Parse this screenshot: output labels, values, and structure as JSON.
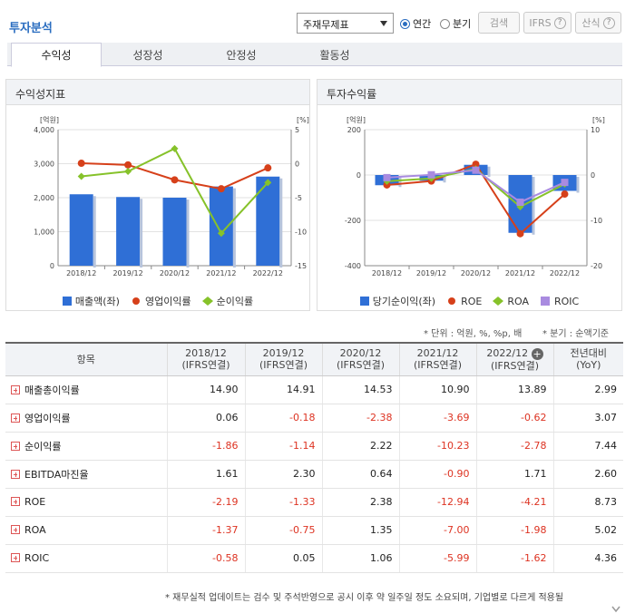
{
  "header": {
    "title": "투자분석",
    "select_value": "주재무제표",
    "radio_annual": "연간",
    "radio_quarter": "분기",
    "search_btn": "검색",
    "ifrs_btn": "IFRS",
    "formula_btn": "산식"
  },
  "tabs": [
    "수익성",
    "성장성",
    "안정성",
    "활동성"
  ],
  "left_panel": {
    "title": "수익성지표",
    "left_unit": "[억원]",
    "right_unit": "[%]",
    "legend": [
      "매출액(좌)",
      "영업이익률",
      "순이익률"
    ]
  },
  "right_panel": {
    "title": "투자수익률",
    "left_unit": "[억원]",
    "right_unit": "[%]",
    "legend": [
      "당기순이익(좌)",
      "ROE",
      "ROA",
      "ROIC"
    ]
  },
  "chart_data": [
    {
      "type": "bar",
      "title": "수익성지표",
      "categories": [
        "2018/12",
        "2019/12",
        "2020/12",
        "2021/12",
        "2022/12"
      ],
      "y_left_ticks": [
        "4,000",
        "3,000",
        "2,000",
        "1,000",
        "0"
      ],
      "y_right_ticks": [
        "5",
        "0",
        "-5",
        "-10",
        "-15"
      ],
      "ylim_left": [
        0,
        4000
      ],
      "ylim_right": [
        -15,
        5
      ],
      "series": [
        {
          "name": "매출액(좌)",
          "type": "bar",
          "axis": "left",
          "color": "#2f6fd6",
          "values": [
            2100,
            2020,
            2000,
            2330,
            2620
          ]
        },
        {
          "name": "영업이익률",
          "type": "line",
          "axis": "right",
          "color": "#d6401a",
          "values": [
            0.06,
            -0.18,
            -2.38,
            -3.69,
            -0.62
          ]
        },
        {
          "name": "순이익률",
          "type": "line",
          "axis": "right",
          "color": "#86c22a",
          "values": [
            -1.86,
            -1.14,
            2.22,
            -10.23,
            -2.78
          ]
        }
      ]
    },
    {
      "type": "bar",
      "title": "투자수익률",
      "categories": [
        "2018/12",
        "2019/12",
        "2020/12",
        "2021/12",
        "2022/12"
      ],
      "y_left_ticks": [
        "200",
        "0",
        "-200",
        "-400"
      ],
      "y_right_ticks": [
        "10",
        "0",
        "-10",
        "-20"
      ],
      "ylim_left": [
        -400,
        200
      ],
      "ylim_right": [
        -20,
        10
      ],
      "series": [
        {
          "name": "당기순이익(좌)",
          "type": "bar",
          "axis": "left",
          "color": "#2f6fd6",
          "values": [
            -45,
            -25,
            45,
            -255,
            -70
          ]
        },
        {
          "name": "ROE",
          "type": "line",
          "axis": "right",
          "color": "#d6401a",
          "values": [
            -2.19,
            -1.33,
            2.38,
            -12.94,
            -4.21
          ]
        },
        {
          "name": "ROA",
          "type": "line",
          "axis": "right",
          "color": "#86c22a",
          "values": [
            -1.37,
            -0.75,
            1.35,
            -7.0,
            -1.98
          ]
        },
        {
          "name": "ROIC",
          "type": "line",
          "axis": "right",
          "color": "#a98be0",
          "values": [
            -0.58,
            0.05,
            1.06,
            -5.99,
            -1.62
          ]
        }
      ]
    }
  ],
  "notes": {
    "unit": "* 단위 : 억원, %, %p, 배",
    "quarter": "* 분기 : 순액기준",
    "footer": "* 재무실적 업데이트는 검수 및 주석반영으로 공시 이후 약 일주일 정도 소요되며, 기업별로 다르게 적용될"
  },
  "table": {
    "head_label": "항목",
    "columns": [
      {
        "date": "2018/12",
        "sub": "(IFRS연결)"
      },
      {
        "date": "2019/12",
        "sub": "(IFRS연결)"
      },
      {
        "date": "2020/12",
        "sub": "(IFRS연결)"
      },
      {
        "date": "2021/12",
        "sub": "(IFRS연결)"
      },
      {
        "date": "2022/12",
        "sub": "(IFRS연결)"
      }
    ],
    "yoy_label": "전년대비",
    "yoy_sub": "(YoY)",
    "rows": [
      {
        "name": "매출총이익률",
        "values": [
          "14.90",
          "14.91",
          "14.53",
          "10.90",
          "13.89"
        ],
        "yoy": "2.99"
      },
      {
        "name": "영업이익률",
        "values": [
          "0.06",
          "-0.18",
          "-2.38",
          "-3.69",
          "-0.62"
        ],
        "yoy": "3.07"
      },
      {
        "name": "순이익률",
        "values": [
          "-1.86",
          "-1.14",
          "2.22",
          "-10.23",
          "-2.78"
        ],
        "yoy": "7.44"
      },
      {
        "name": "EBITDA마진율",
        "values": [
          "1.61",
          "2.30",
          "0.64",
          "-0.90",
          "1.71"
        ],
        "yoy": "2.60"
      },
      {
        "name": "ROE",
        "values": [
          "-2.19",
          "-1.33",
          "2.38",
          "-12.94",
          "-4.21"
        ],
        "yoy": "8.73"
      },
      {
        "name": "ROA",
        "values": [
          "-1.37",
          "-0.75",
          "1.35",
          "-7.00",
          "-1.98"
        ],
        "yoy": "5.02"
      },
      {
        "name": "ROIC",
        "values": [
          "-0.58",
          "0.05",
          "1.06",
          "-5.99",
          "-1.62"
        ],
        "yoy": "4.36"
      }
    ]
  }
}
